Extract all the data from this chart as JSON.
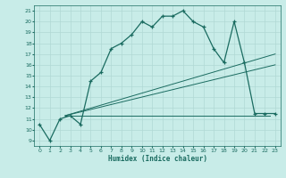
{
  "xlabel": "Humidex (Indice chaleur)",
  "bg_color": "#c8ece8",
  "grid_color": "#b0d8d4",
  "line_color": "#1a6b60",
  "xlim": [
    -0.5,
    23.5
  ],
  "ylim": [
    8.5,
    21.5
  ],
  "xticks": [
    0,
    1,
    2,
    3,
    4,
    5,
    6,
    7,
    8,
    9,
    10,
    11,
    12,
    13,
    14,
    15,
    16,
    17,
    18,
    19,
    20,
    21,
    22,
    23
  ],
  "yticks": [
    9,
    10,
    11,
    12,
    13,
    14,
    15,
    16,
    17,
    18,
    19,
    20,
    21
  ],
  "main_x": [
    0,
    1,
    2,
    3,
    4,
    5,
    6,
    7,
    8,
    9,
    10,
    11,
    12,
    13,
    14,
    15,
    16,
    17,
    18,
    19,
    20,
    21,
    22,
    23
  ],
  "main_y": [
    10.5,
    9.0,
    11.0,
    11.3,
    10.5,
    14.5,
    15.3,
    17.5,
    18.0,
    18.8,
    20.0,
    19.5,
    20.5,
    20.5,
    21.0,
    20.0,
    19.5,
    17.5,
    16.2,
    20.0,
    16.2,
    11.5,
    11.5,
    11.5
  ],
  "line1_x": [
    2.5,
    23
  ],
  "line1_y": [
    11.3,
    17.0
  ],
  "line2_x": [
    2.5,
    23
  ],
  "line2_y": [
    11.3,
    16.0
  ],
  "line3_x": [
    2.5,
    22.5
  ],
  "line3_y": [
    11.3,
    11.3
  ]
}
